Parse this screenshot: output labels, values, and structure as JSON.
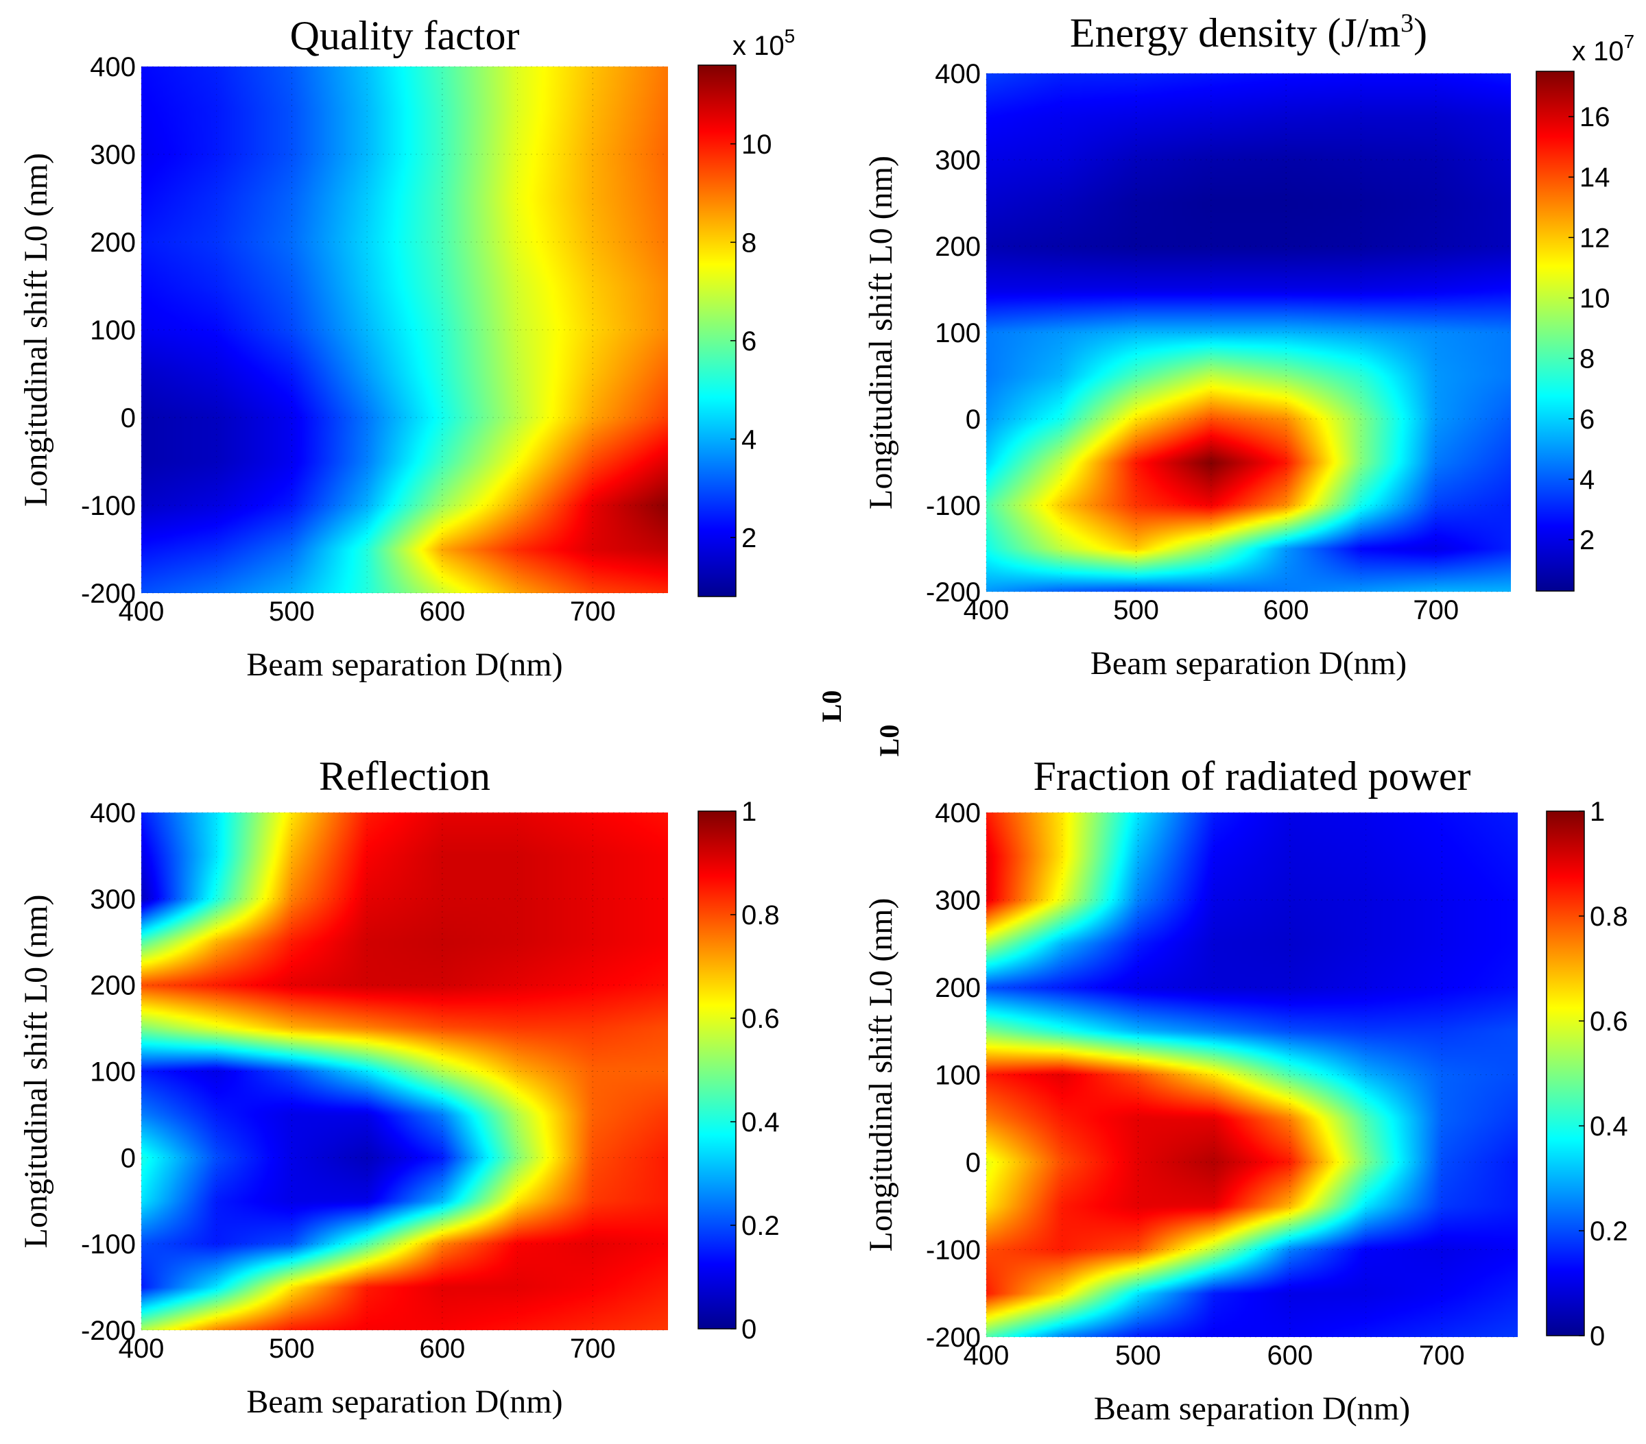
{
  "chart_data": [
    {
      "type": "heatmap",
      "title": "Quality factor",
      "xlabel": "Beam separation D(nm)",
      "ylabel": "Longitudinal shift  L0 (nm)",
      "x_ticks": [
        "400",
        "500",
        "600",
        "700"
      ],
      "y_ticks": [
        "-200",
        "-100",
        "0",
        "100",
        "200",
        "300",
        "400"
      ],
      "xlim": [
        400,
        750
      ],
      "ylim": [
        -200,
        400
      ],
      "colorbar": {
        "ticks": [
          "2",
          "4",
          "6",
          "8",
          "10"
        ],
        "min": 0.8,
        "max": 11.6,
        "exponent_label": "x 10",
        "exponent_power": "5"
      },
      "grid": true,
      "x": [
        400,
        450,
        500,
        550,
        600,
        650,
        700,
        750
      ],
      "y": [
        -200,
        -150,
        -100,
        -50,
        0,
        50,
        100,
        150,
        200,
        250,
        300,
        350,
        400
      ],
      "z": [
        [
          3.0,
          3.4,
          4.0,
          5.2,
          7.0,
          8.5,
          9.5,
          9.8
        ],
        [
          2.3,
          2.6,
          3.3,
          5.2,
          8.5,
          9.8,
          10.6,
          10.9
        ],
        [
          1.5,
          1.8,
          2.4,
          4.0,
          6.5,
          8.5,
          10.5,
          11.5
        ],
        [
          1.2,
          1.4,
          2.0,
          3.5,
          5.5,
          7.5,
          9.5,
          10.6
        ],
        [
          1.2,
          1.4,
          2.0,
          3.4,
          5.0,
          6.8,
          8.5,
          9.6
        ],
        [
          1.5,
          1.8,
          2.4,
          3.8,
          5.2,
          6.9,
          8.2,
          9.2
        ],
        [
          2.0,
          2.2,
          2.9,
          4.1,
          5.3,
          7.0,
          8.0,
          8.8
        ],
        [
          2.2,
          2.5,
          3.1,
          4.3,
          5.5,
          7.1,
          8.1,
          8.8
        ],
        [
          2.4,
          2.7,
          3.3,
          4.4,
          5.6,
          7.3,
          8.3,
          9.0
        ],
        [
          2.2,
          2.6,
          3.2,
          4.3,
          5.6,
          7.4,
          8.4,
          9.1
        ],
        [
          2.0,
          2.4,
          3.0,
          4.1,
          5.5,
          7.3,
          8.4,
          9.2
        ],
        [
          2.1,
          2.4,
          3.0,
          4.1,
          5.5,
          7.2,
          8.3,
          9.1
        ],
        [
          2.2,
          2.5,
          3.1,
          4.2,
          5.6,
          7.2,
          8.2,
          9.0
        ]
      ]
    },
    {
      "type": "heatmap",
      "title": "Energy density (J/m",
      "title_sup": "3",
      "title_end": ")",
      "xlabel": "Beam separation D(nm)",
      "ylabel": "Longitudinal shift  L0 (nm)",
      "x_ticks": [
        "400",
        "500",
        "600",
        "700"
      ],
      "y_ticks": [
        "-200",
        "-100",
        "0",
        "100",
        "200",
        "300",
        "400"
      ],
      "xlim": [
        400,
        750
      ],
      "ylim": [
        -200,
        400
      ],
      "colorbar": {
        "ticks": [
          "2",
          "4",
          "6",
          "8",
          "10",
          "12",
          "14",
          "16"
        ],
        "min": 0.3,
        "max": 17.5,
        "exponent_label": "x 10",
        "exponent_power": "7"
      },
      "grid": true,
      "x": [
        400,
        450,
        500,
        550,
        600,
        650,
        700,
        750
      ],
      "y": [
        -200,
        -150,
        -100,
        -50,
        0,
        50,
        100,
        150,
        200,
        250,
        300,
        350,
        400
      ],
      "z": [
        [
          5.0,
          4.0,
          3.5,
          4.0,
          4.5,
          5.0,
          5.5,
          5.5
        ],
        [
          7.0,
          10.0,
          12.0,
          9.0,
          5.0,
          2.5,
          2.0,
          3.0
        ],
        [
          8.0,
          12.0,
          14.5,
          15.5,
          13.0,
          7.0,
          3.5,
          3.0
        ],
        [
          6.0,
          10.0,
          15.0,
          17.5,
          15.0,
          9.0,
          4.5,
          3.5
        ],
        [
          5.0,
          7.0,
          11.5,
          14.0,
          13.0,
          9.0,
          5.0,
          4.0
        ],
        [
          4.5,
          5.5,
          8.0,
          10.0,
          9.0,
          7.5,
          5.0,
          4.5
        ],
        [
          4.5,
          5.0,
          5.5,
          5.5,
          5.5,
          5.2,
          4.8,
          4.5
        ],
        [
          2.0,
          2.0,
          2.0,
          2.0,
          2.0,
          2.0,
          2.2,
          2.5
        ],
        [
          1.0,
          0.8,
          0.6,
          0.6,
          0.6,
          0.7,
          0.9,
          1.2
        ],
        [
          1.5,
          1.2,
          0.7,
          0.5,
          0.5,
          0.6,
          0.8,
          1.2
        ],
        [
          2.0,
          1.8,
          1.2,
          0.9,
          0.8,
          0.9,
          1.0,
          1.5
        ],
        [
          2.5,
          2.2,
          2.0,
          1.8,
          1.6,
          1.5,
          1.5,
          1.8
        ],
        [
          3.5,
          3.0,
          3.0,
          2.8,
          2.6,
          2.5,
          2.5,
          2.8
        ]
      ]
    },
    {
      "type": "heatmap",
      "title": "Reflection",
      "xlabel": "Beam separation D(nm)",
      "ylabel": "Longitudinal shift  L0 (nm)",
      "x_ticks": [
        "400",
        "500",
        "600",
        "700"
      ],
      "y_ticks": [
        "-200",
        "-100",
        "0",
        "100",
        "200",
        "300",
        "400"
      ],
      "xlim": [
        400,
        750
      ],
      "ylim": [
        -200,
        400
      ],
      "colorbar": {
        "ticks": [
          "0",
          "0.2",
          "0.4",
          "0.6",
          "0.8",
          "1"
        ],
        "min": 0,
        "max": 1
      },
      "grid": true,
      "x": [
        400,
        450,
        500,
        550,
        600,
        650,
        700,
        750
      ],
      "y": [
        -200,
        -150,
        -100,
        -50,
        0,
        50,
        100,
        150,
        200,
        250,
        300,
        350,
        400
      ],
      "z": [
        [
          0.55,
          0.75,
          0.85,
          0.88,
          0.88,
          0.86,
          0.84,
          0.82
        ],
        [
          0.15,
          0.35,
          0.65,
          0.85,
          0.9,
          0.9,
          0.88,
          0.85
        ],
        [
          0.2,
          0.15,
          0.2,
          0.45,
          0.75,
          0.88,
          0.9,
          0.88
        ],
        [
          0.35,
          0.15,
          0.1,
          0.1,
          0.3,
          0.65,
          0.82,
          0.85
        ],
        [
          0.4,
          0.2,
          0.1,
          0.05,
          0.15,
          0.5,
          0.8,
          0.85
        ],
        [
          0.25,
          0.15,
          0.1,
          0.1,
          0.25,
          0.55,
          0.78,
          0.82
        ],
        [
          0.15,
          0.1,
          0.2,
          0.35,
          0.55,
          0.7,
          0.78,
          0.78
        ],
        [
          0.5,
          0.6,
          0.7,
          0.75,
          0.8,
          0.82,
          0.82,
          0.8
        ],
        [
          0.8,
          0.85,
          0.9,
          0.92,
          0.92,
          0.9,
          0.88,
          0.86
        ],
        [
          0.45,
          0.7,
          0.85,
          0.92,
          0.93,
          0.92,
          0.9,
          0.88
        ],
        [
          0.05,
          0.4,
          0.75,
          0.9,
          0.92,
          0.92,
          0.9,
          0.88
        ],
        [
          0.1,
          0.35,
          0.7,
          0.88,
          0.92,
          0.92,
          0.9,
          0.88
        ],
        [
          0.15,
          0.35,
          0.65,
          0.85,
          0.9,
          0.9,
          0.88,
          0.86
        ]
      ]
    },
    {
      "type": "heatmap",
      "title": "Fraction of radiated power",
      "xlabel": "Beam separation D(nm)",
      "ylabel": "Longitudinal shift  L0 (nm)",
      "x_ticks": [
        "400",
        "500",
        "600",
        "700"
      ],
      "y_ticks": [
        "-200",
        "-100",
        "0",
        "100",
        "200",
        "300",
        "400"
      ],
      "xlim": [
        400,
        750
      ],
      "ylim": [
        -200,
        400
      ],
      "colorbar": {
        "ticks": [
          "0",
          "0.2",
          "0.4",
          "0.6",
          "0.8",
          "1"
        ],
        "min": 0,
        "max": 1
      },
      "grid": true,
      "x": [
        400,
        450,
        500,
        550,
        600,
        650,
        700,
        750
      ],
      "y": [
        -200,
        -150,
        -100,
        -50,
        0,
        50,
        100,
        150,
        200,
        250,
        300,
        350,
        400
      ],
      "z": [
        [
          0.45,
          0.25,
          0.15,
          0.12,
          0.12,
          0.14,
          0.16,
          0.18
        ],
        [
          0.85,
          0.65,
          0.35,
          0.15,
          0.1,
          0.1,
          0.12,
          0.15
        ],
        [
          0.8,
          0.85,
          0.8,
          0.55,
          0.25,
          0.12,
          0.1,
          0.12
        ],
        [
          0.65,
          0.85,
          0.9,
          0.9,
          0.7,
          0.35,
          0.18,
          0.15
        ],
        [
          0.6,
          0.8,
          0.9,
          0.95,
          0.85,
          0.5,
          0.2,
          0.15
        ],
        [
          0.75,
          0.85,
          0.9,
          0.9,
          0.75,
          0.45,
          0.22,
          0.18
        ],
        [
          0.85,
          0.9,
          0.8,
          0.65,
          0.45,
          0.3,
          0.22,
          0.2
        ],
        [
          0.5,
          0.4,
          0.3,
          0.25,
          0.2,
          0.18,
          0.18,
          0.2
        ],
        [
          0.2,
          0.15,
          0.1,
          0.08,
          0.08,
          0.1,
          0.12,
          0.14
        ],
        [
          0.55,
          0.3,
          0.15,
          0.08,
          0.07,
          0.09,
          0.11,
          0.13
        ],
        [
          0.9,
          0.6,
          0.25,
          0.1,
          0.08,
          0.09,
          0.11,
          0.13
        ],
        [
          0.9,
          0.65,
          0.3,
          0.12,
          0.09,
          0.1,
          0.12,
          0.14
        ],
        [
          0.85,
          0.65,
          0.35,
          0.15,
          0.1,
          0.11,
          0.13,
          0.15
        ]
      ]
    }
  ],
  "stray_labels": [
    "L0",
    "L0"
  ]
}
